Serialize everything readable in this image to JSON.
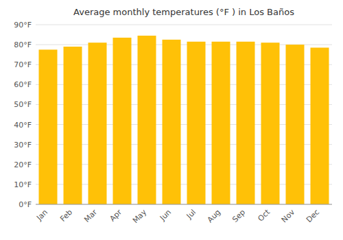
{
  "chart_data": {
    "type": "bar",
    "title": "Average monthly temperatures (°F ) in Los Baños",
    "categories": [
      "Jan",
      "Feb",
      "Mar",
      "Apr",
      "May",
      "Jun",
      "Jul",
      "Aug",
      "Sep",
      "Oct",
      "Nov",
      "Dec"
    ],
    "values": [
      77.5,
      79.0,
      81.0,
      83.5,
      84.5,
      82.5,
      81.5,
      81.5,
      81.5,
      81.0,
      80.0,
      78.5
    ],
    "color": "#FFC107",
    "ylim": [
      0,
      90
    ],
    "yticks": [
      {
        "value": 0,
        "label": "0°F"
      },
      {
        "value": 10,
        "label": "10°F"
      },
      {
        "value": 20,
        "label": "20°F"
      },
      {
        "value": 30,
        "label": "30°F"
      },
      {
        "value": 40,
        "label": "40°F"
      },
      {
        "value": 50,
        "label": "50°F"
      },
      {
        "value": 60,
        "label": "60°F"
      },
      {
        "value": 70,
        "label": "70°F"
      },
      {
        "value": 80,
        "label": "80°F"
      },
      {
        "value": 90,
        "label": "90°F"
      }
    ],
    "grid": true
  }
}
